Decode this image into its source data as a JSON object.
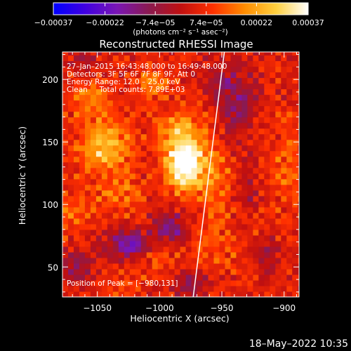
{
  "chart_data": {
    "type": "heatmap",
    "title": "Reconstructed RHESSI Image",
    "xlabel": "Heliocentric X (arcsec)",
    "ylabel": "Heliocentric Y (arcsec)",
    "xlim": [
      -1078,
      -888
    ],
    "ylim": [
      26,
      222
    ],
    "x_ticks": [
      -1050,
      -1000,
      -950,
      -900
    ],
    "x_tick_labels": [
      "−1050",
      "−1000",
      "−950",
      "−900"
    ],
    "y_ticks": [
      50,
      100,
      150,
      200
    ],
    "y_tick_labels": [
      "50",
      "100",
      "150",
      "200"
    ],
    "colorbar": {
      "range": [
        -0.00037,
        0.00037
      ],
      "tick_values": [
        -0.00037,
        -0.00022,
        -7.4e-05,
        7.4e-05,
        0.00022,
        0.00037
      ],
      "tick_labels": [
        "−0.00037",
        "−0.00022",
        "−7.4e−05",
        "7.4e−05",
        "0.00022",
        "0.00037"
      ],
      "units": "(photons cm⁻² s⁻¹ asec⁻²)",
      "colors": [
        "#0000ff",
        "#4000e0",
        "#7a16b4",
        "#8a1a50",
        "#c01010",
        "#ff3000",
        "#ff8c00",
        "#ffd040",
        "#ffffff"
      ]
    },
    "annotations": [
      "27–Jan–2015 16:43:48.000 to 16:49:48.000",
      "Detectors: 3F 5F 6F 7F 8F 9F, Att 0",
      "Energy Range: 12.0 – 25.0 keV",
      "Clean     Total counts: 7.89E+03"
    ],
    "peak_label": "Position of Peak = [−980,131]",
    "peak": [
      -980,
      131
    ],
    "limb_line": {
      "x": [
        -973,
        -948
      ],
      "y": [
        26,
        222
      ],
      "color": "#ffffff"
    },
    "sources": [
      {
        "x": -980,
        "y": 131,
        "sx": 10,
        "sy": 13,
        "amp": 0.00037
      },
      {
        "x": -983,
        "y": 158,
        "sx": 12,
        "sy": 14,
        "amp": 0.00019
      },
      {
        "x": -1044,
        "y": 147,
        "sx": 15,
        "sy": 15,
        "amp": 0.00023
      },
      {
        "x": -1056,
        "y": 186,
        "sx": 11,
        "sy": 11,
        "amp": 0.00013
      },
      {
        "x": -1032,
        "y": 107,
        "sx": 14,
        "sy": 10,
        "amp": 0.00012
      },
      {
        "x": -1006,
        "y": 197,
        "sx": 10,
        "sy": 10,
        "amp": 0.00012
      },
      {
        "x": -957,
        "y": 120,
        "sx": 10,
        "sy": 22,
        "amp": 0.00013
      },
      {
        "x": -956,
        "y": 63,
        "sx": 11,
        "sy": 13,
        "amp": 8e-05
      },
      {
        "x": -1070,
        "y": 95,
        "sx": 9,
        "sy": 14,
        "amp": 9e-05
      },
      {
        "x": -1000,
        "y": 55,
        "sx": 14,
        "sy": 10,
        "amp": 6e-05
      },
      {
        "x": -1030,
        "y": 35,
        "sx": 11,
        "sy": 9,
        "amp": 6e-05
      },
      {
        "x": -897,
        "y": 130,
        "sx": 10,
        "sy": 28,
        "amp": 9e-05
      },
      {
        "x": -925,
        "y": 95,
        "sx": 10,
        "sy": 40,
        "amp": 5e-05
      },
      {
        "x": -1025,
        "y": 68,
        "sx": 10,
        "sy": 8,
        "amp": -0.00024
      },
      {
        "x": -992,
        "y": 82,
        "sx": 9,
        "sy": 8,
        "amp": -0.00018
      },
      {
        "x": -938,
        "y": 180,
        "sx": 9,
        "sy": 18,
        "amp": -0.00016
      },
      {
        "x": -1065,
        "y": 50,
        "sx": 8,
        "sy": 9,
        "amp": -0.00013
      },
      {
        "x": -975,
        "y": 38,
        "sx": 8,
        "sy": 8,
        "amp": -0.00013
      },
      {
        "x": -928,
        "y": 110,
        "sx": 6,
        "sy": 20,
        "amp": -0.00012
      },
      {
        "x": -952,
        "y": 200,
        "sx": 6,
        "sy": 9,
        "amp": -0.00011
      },
      {
        "x": -1060,
        "y": 215,
        "sx": 8,
        "sy": 7,
        "amp": -8e-05
      },
      {
        "x": -915,
        "y": 60,
        "sx": 8,
        "sy": 10,
        "amp": -0.00012
      }
    ],
    "background": 4e-05,
    "grid": false
  },
  "footer": {
    "timestamp": "18–May–2022 10:35"
  }
}
